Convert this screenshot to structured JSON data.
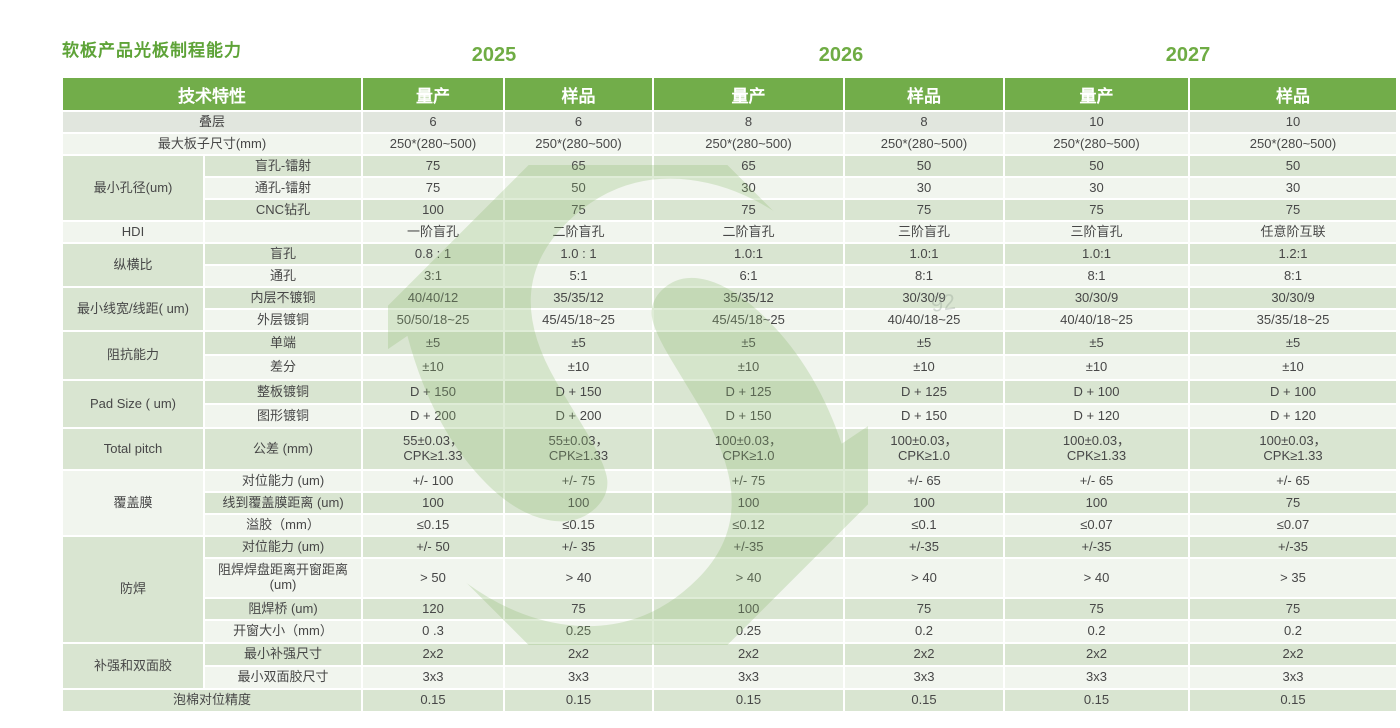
{
  "title": "软板产品光板制程能力",
  "years": [
    "2025",
    "2026",
    "2027"
  ],
  "watermark": {
    "letter": "S",
    "faint_text": "92"
  },
  "colors": {
    "header_green": "#72ad4a",
    "title_green": "#5ea338",
    "year_green": "#6fac44",
    "band_row_green": "#d9e5d1",
    "light_row": "#f1f5ee",
    "gray_row": "#e1e6de",
    "watermark_green": "#8dbb70"
  },
  "table": {
    "header": {
      "feature": "技术特性",
      "cols": [
        "量产",
        "样品",
        "量产",
        "样品",
        "量产",
        "样品"
      ]
    },
    "rows": [
      {
        "full": "叠层",
        "tone": "gray",
        "values": [
          "6",
          "6",
          "8",
          "8",
          "10",
          "10"
        ]
      },
      {
        "full": "最大板子尺寸(mm)",
        "values": [
          "250*(280~500)",
          "250*(280~500)",
          "250*(280~500)",
          "250*(280~500)",
          "250*(280~500)",
          "250*(280~500)"
        ]
      },
      {
        "cat": "最小孔径(um)",
        "catRowspan": 3,
        "sub": "盲孔-镭射",
        "values": [
          "75",
          "65",
          "65",
          "50",
          "50",
          "50"
        ]
      },
      {
        "sub": "通孔-镭射",
        "values": [
          "75",
          "50",
          "30",
          "30",
          "30",
          "30"
        ]
      },
      {
        "sub": "CNC钻孔",
        "values": [
          "100",
          "75",
          "75",
          "75",
          "75",
          "75"
        ]
      },
      {
        "cat": "HDI",
        "catRowspan": 1,
        "sub": "",
        "values": [
          "一阶盲孔",
          "二阶盲孔",
          "二阶盲孔",
          "三阶盲孔",
          "三阶盲孔",
          "任意阶互联"
        ]
      },
      {
        "cat": "纵横比",
        "catRowspan": 2,
        "sub": "盲孔",
        "values": [
          "0.8 : 1",
          "1.0 : 1",
          "1.0:1",
          "1.0:1",
          "1.0:1",
          "1.2:1"
        ]
      },
      {
        "sub": "通孔",
        "values": [
          "3:1",
          "5:1",
          "6:1",
          "8:1",
          "8:1",
          "8:1"
        ]
      },
      {
        "cat": "最小线宽/线距( um)",
        "catRowspan": 2,
        "sub": "内层不镀铜",
        "values": [
          "40/40/12",
          "35/35/12",
          "35/35/12",
          "30/30/9",
          "30/30/9",
          "30/30/9"
        ]
      },
      {
        "sub": "外层镀铜",
        "values": [
          "50/50/18~25",
          "45/45/18~25",
          "45/45/18~25",
          "40/40/18~25",
          "40/40/18~25",
          "35/35/18~25"
        ]
      },
      {
        "cat": "阻抗能力",
        "catRowspan": 2,
        "sub": "单端",
        "values": [
          "±5",
          "±5",
          "±5",
          "±5",
          "±5",
          "±5"
        ]
      },
      {
        "sub": "差分",
        "values": [
          "±10",
          "±10",
          "±10",
          "±10",
          "±10",
          "±10"
        ]
      },
      {
        "cat": "Pad Size ( um)",
        "catRowspan": 2,
        "sub": "整板镀铜",
        "values": [
          "D + 150",
          "D + 150",
          "D + 125",
          "D + 125",
          "D + 100",
          "D + 100"
        ]
      },
      {
        "sub": "图形镀铜",
        "values": [
          "D + 200",
          "D + 200",
          "D + 150",
          "D + 150",
          "D + 120",
          "D + 120"
        ]
      },
      {
        "cat": "Total pitch",
        "catRowspan": 1,
        "sub": "公差 (mm)",
        "values": [
          "55±0.03，\nCPK≥1.33",
          "55±0.03，\nCPK≥1.33",
          "100±0.03，\nCPK≥1.0",
          "100±0.03，\nCPK≥1.0",
          "100±0.03，\nCPK≥1.33",
          "100±0.03，\nCPK≥1.33"
        ]
      },
      {
        "cat": "覆盖膜",
        "catRowspan": 3,
        "sub": "对位能力 (um)",
        "values": [
          "+/- 100",
          "+/- 75",
          "+/- 75",
          "+/- 65",
          "+/- 65",
          "+/- 65"
        ]
      },
      {
        "sub": "线到覆盖膜距离 (um)",
        "values": [
          "100",
          "100",
          "100",
          "100",
          "100",
          "75"
        ]
      },
      {
        "sub": "溢胶（mm）",
        "values": [
          "≤0.15",
          "≤0.15",
          "≤0.12",
          "≤0.1",
          "≤0.07",
          "≤0.07"
        ]
      },
      {
        "cat": "防焊",
        "catRowspan": 4,
        "sub": "对位能力 (um)",
        "values": [
          "+/- 50",
          "+/- 35",
          "+/-35",
          "+/-35",
          "+/-35",
          "+/-35"
        ]
      },
      {
        "sub": "阻焊焊盘距离开窗距离 (um)",
        "values": [
          "> 50",
          "> 40",
          "> 40",
          "> 40",
          "> 40",
          "> 35"
        ]
      },
      {
        "sub": "阻焊桥 (um)",
        "values": [
          "120",
          "75",
          "100",
          "75",
          "75",
          "75"
        ]
      },
      {
        "sub": "开窗大小（mm）",
        "values": [
          "0 .3",
          "0.25",
          "0.25",
          "0.2",
          "0.2",
          "0.2"
        ]
      },
      {
        "cat": "补强和双面胶",
        "catRowspan": 2,
        "sub": "最小补强尺寸",
        "values": [
          "2x2",
          "2x2",
          "2x2",
          "2x2",
          "2x2",
          "2x2"
        ]
      },
      {
        "sub": "最小双面胶尺寸",
        "values": [
          "3x3",
          "3x3",
          "3x3",
          "3x3",
          "3x3",
          "3x3"
        ]
      },
      {
        "full": "泡棉对位精度",
        "values": [
          "0.15",
          "0.15",
          "0.15",
          "0.15",
          "0.15",
          "0.15"
        ]
      }
    ]
  }
}
